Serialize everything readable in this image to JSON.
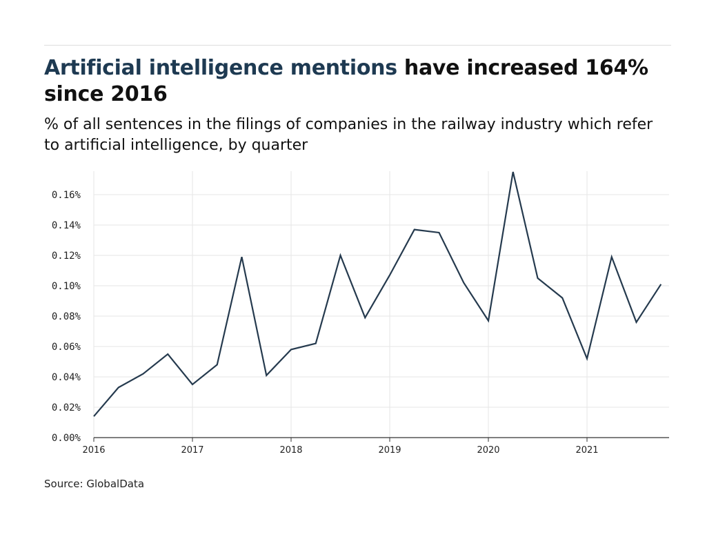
{
  "header": {
    "title_highlight": "Artificial intelligence mentions",
    "title_rest": " have increased 164% since 2016",
    "subtitle": "% of all sentences in the filings of companies in the railway industry which refer to artificial intelligence, by quarter"
  },
  "source": "Source: GlobalData",
  "colors": {
    "line": "#253a4e",
    "title_highlight": "#1e3a52",
    "grid": "#e5e5e5"
  },
  "chart_data": {
    "type": "line",
    "title": "",
    "xlabel": "",
    "ylabel": "",
    "ylim": [
      0,
      0.175
    ],
    "grid": true,
    "y_ticks": [
      "0.00%",
      "0.02%",
      "0.04%",
      "0.06%",
      "0.08%",
      "0.10%",
      "0.12%",
      "0.14%",
      "0.16%"
    ],
    "y_tick_values": [
      0,
      0.02,
      0.04,
      0.06,
      0.08,
      0.1,
      0.12,
      0.14,
      0.16
    ],
    "x_ticks": [
      "2016",
      "2017",
      "2018",
      "2019",
      "2020",
      "2021"
    ],
    "x": [
      "2016 Q1",
      "2016 Q2",
      "2016 Q3",
      "2016 Q4",
      "2017 Q1",
      "2017 Q2",
      "2017 Q3",
      "2017 Q4",
      "2018 Q1",
      "2018 Q2",
      "2018 Q3",
      "2018 Q4",
      "2019 Q1",
      "2019 Q2",
      "2019 Q3",
      "2019 Q4",
      "2020 Q1",
      "2020 Q2",
      "2020 Q3",
      "2020 Q4",
      "2021 Q1",
      "2021 Q2",
      "2021 Q3",
      "2021 Q4"
    ],
    "values": [
      0.014,
      0.033,
      0.042,
      0.055,
      0.035,
      0.048,
      0.119,
      0.041,
      0.058,
      0.062,
      0.12,
      0.079,
      0.107,
      0.137,
      0.135,
      0.102,
      0.077,
      0.175,
      0.105,
      0.092,
      0.052,
      0.119,
      0.076,
      0.101
    ]
  }
}
